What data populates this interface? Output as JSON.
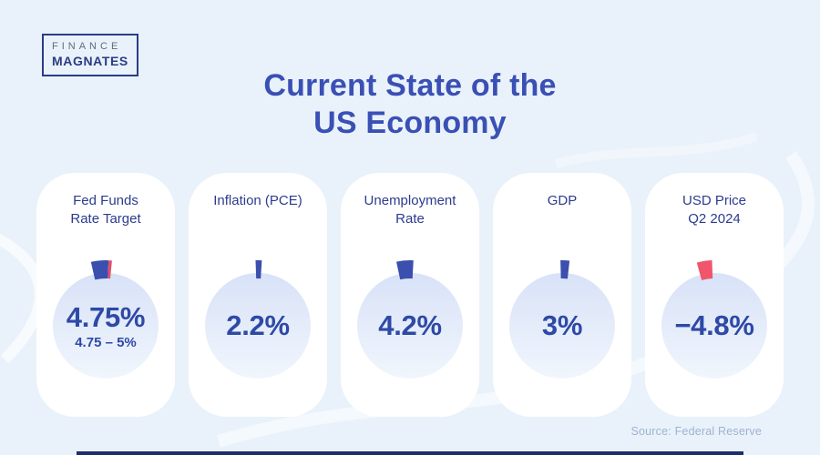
{
  "colors": {
    "background": "#e9f2fa",
    "card_background": "#ffffff",
    "title_blue": "#3a50b5",
    "card_title_navy": "#2c3b8f",
    "value_blue": "#2e49a6",
    "marker_blue": "#3a4fae",
    "marker_red": "#f0556c",
    "marker_red_sliver": "#de4f6e",
    "gauge_top": "#d8e2f7",
    "gauge_bottom": "#f1f6fd",
    "source_text": "#9db3d2",
    "bottom_bar": "#1d2d6e",
    "logo_navy": "#2b3c85",
    "logo_gray": "#5f6b7e"
  },
  "logo": {
    "line1": "FINANCE",
    "line2": "MAGNATES"
  },
  "header": {
    "title": "Current State of the\nUS Economy"
  },
  "source": {
    "label": "Source: Federal Reserve"
  },
  "cards": [
    {
      "title": "Fed Funds\nRate Target",
      "value": "4.75%",
      "sub": "4.75 – 5%",
      "gauge": {
        "markers": [
          {
            "start": -13,
            "end": 2.5,
            "color": "#3a4fae"
          },
          {
            "start": 2.5,
            "end": 5.5,
            "color": "#de4f6e"
          }
        ]
      }
    },
    {
      "title": "Inflation (PCE)",
      "value": "2.2%",
      "sub": "",
      "gauge": {
        "markers": [
          {
            "start": -2,
            "end": 3.5,
            "color": "#3a4fae"
          }
        ]
      }
    },
    {
      "title": "Unemployment\nRate",
      "value": "4.2%",
      "sub": "",
      "gauge": {
        "markers": [
          {
            "start": -12,
            "end": 3,
            "color": "#3a4fae"
          }
        ]
      }
    },
    {
      "title": "GDP",
      "value": "3%",
      "sub": "",
      "gauge": {
        "markers": [
          {
            "start": -1.5,
            "end": 6.5,
            "color": "#3a4fae"
          }
        ]
      }
    },
    {
      "title": "USD Price\nQ2 2024",
      "value": "−4.8%",
      "sub": "",
      "gauge": {
        "markers": [
          {
            "start": -15.5,
            "end": -2,
            "color": "#f0556c"
          }
        ]
      }
    }
  ],
  "chart_data": {
    "type": "gauge",
    "title": "Current State of the US Economy",
    "categories": [
      "Fed Funds Rate Target",
      "Inflation (PCE)",
      "Unemployment Rate",
      "GDP",
      "USD Price Q2 2024"
    ],
    "values": [
      4.75,
      2.2,
      4.2,
      3,
      -4.8
    ],
    "value_labels": [
      "4.75%",
      "2.2%",
      "4.2%",
      "3%",
      "−4.8%"
    ],
    "sub_labels": [
      "4.75 – 5%",
      "",
      "",
      "",
      ""
    ],
    "units": "%",
    "marker_colors": [
      "#3a4fae",
      "#3a4fae",
      "#3a4fae",
      "#3a4fae",
      "#f0556c"
    ],
    "source": "Source: Federal Reserve",
    "legend": "none",
    "grid": false
  }
}
